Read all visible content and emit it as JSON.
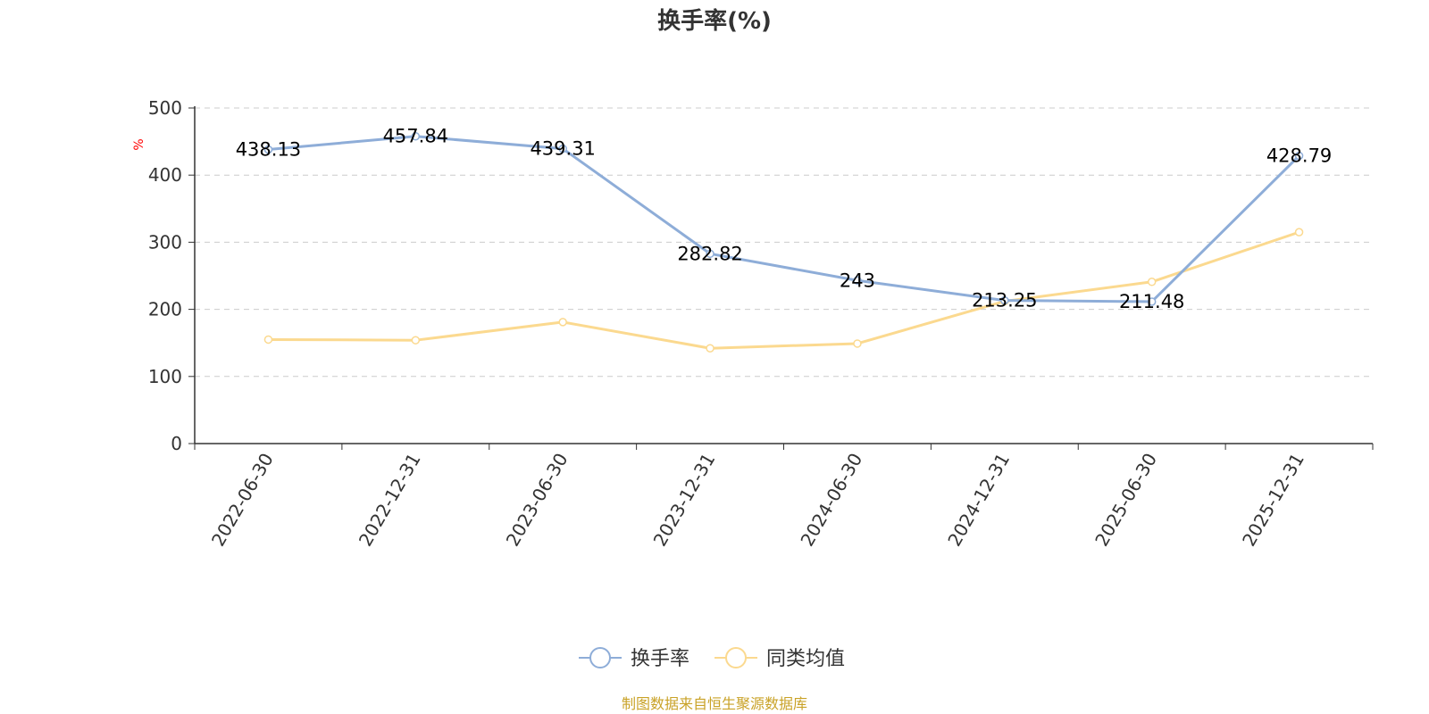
{
  "colors": {
    "series_turnover": "#8eadd8",
    "series_peer": "#fbd98f",
    "unit_label": "#ff0000",
    "source_text": "#c9a227",
    "grid": "#cccccc",
    "axis": "#333333"
  },
  "footer": {
    "source": "制图数据来自恒生聚源数据库"
  },
  "chart_data": {
    "type": "line",
    "title": "换手率(%)",
    "ylabel": "%",
    "xlabel": "",
    "ylim": [
      0,
      500
    ],
    "yticks": [
      0,
      100,
      200,
      300,
      400,
      500
    ],
    "grid": true,
    "legend_position": "bottom-center",
    "categories": [
      "2022-06-30",
      "2022-12-31",
      "2023-06-30",
      "2023-12-31",
      "2024-06-30",
      "2024-12-31",
      "2025-06-30",
      "2025-12-31"
    ],
    "series": [
      {
        "name": "换手率",
        "color_key": "series_turnover",
        "values": [
          438.13,
          457.84,
          439.31,
          282.82,
          243,
          213.25,
          211.48,
          428.79
        ],
        "labels": [
          "438.13",
          "457.84",
          "439.31",
          "282.82",
          "243",
          "213.25",
          "211.48",
          "428.79"
        ]
      },
      {
        "name": "同类均值",
        "color_key": "series_peer",
        "values": [
          155,
          154,
          181,
          142,
          149,
          212,
          241,
          315
        ]
      }
    ]
  }
}
